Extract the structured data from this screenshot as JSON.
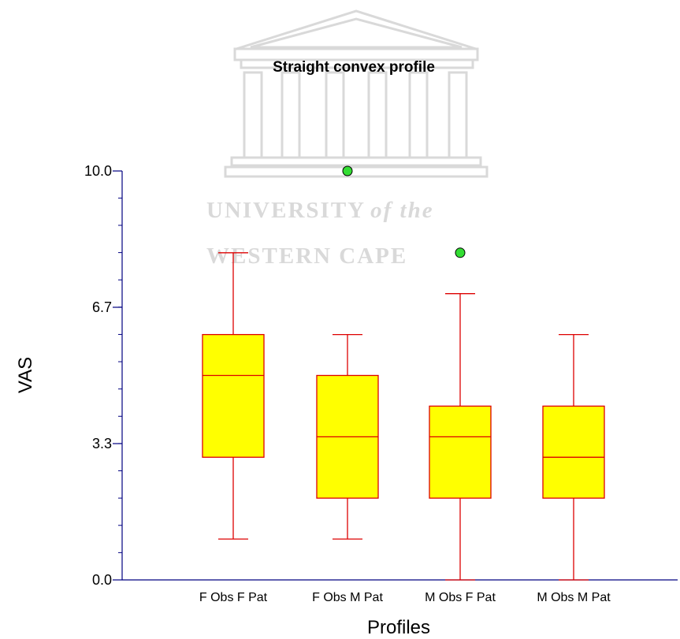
{
  "watermark": {
    "logo": "university-building-seal",
    "line1": "UNIVERSITY",
    "line1_suffix": "of the",
    "line2": "WESTERN CAPE"
  },
  "chart_data": {
    "type": "box",
    "title": "Straight convex profile",
    "xlabel": "Profiles",
    "ylabel": "VAS",
    "ylim": [
      0,
      10
    ],
    "yticks": [
      {
        "value": 0.0,
        "label": "0.0"
      },
      {
        "value": 3.333,
        "label": "3.3"
      },
      {
        "value": 6.667,
        "label": "6.7"
      },
      {
        "value": 10.0,
        "label": "10.0"
      }
    ],
    "yminor_step": 0.667,
    "categories": [
      "F Obs F Pat",
      "F Obs M Pat",
      "M Obs F Pat",
      "M Obs M Pat"
    ],
    "boxes": [
      {
        "category": "F Obs F Pat",
        "whisker_low": 1.0,
        "q1": 3.0,
        "median": 5.0,
        "q3": 6.0,
        "whisker_high": 8.0,
        "outliers": []
      },
      {
        "category": "F Obs M Pat",
        "whisker_low": 1.0,
        "q1": 2.0,
        "median": 3.5,
        "q3": 5.0,
        "whisker_high": 6.0,
        "outliers": [
          10.0
        ]
      },
      {
        "category": "M Obs F Pat",
        "whisker_low": 0.0,
        "q1": 2.0,
        "median": 3.5,
        "q3": 4.25,
        "whisker_high": 7.0,
        "outliers": [
          8.0
        ]
      },
      {
        "category": "M Obs M Pat",
        "whisker_low": 0.0,
        "q1": 2.0,
        "median": 3.0,
        "q3": 4.25,
        "whisker_high": 6.0,
        "outliers": []
      }
    ],
    "colors": {
      "box_fill": "#ffff00",
      "box_stroke": "#dd0000",
      "outlier_fill": "#33dd33",
      "axis": "#000080"
    }
  }
}
